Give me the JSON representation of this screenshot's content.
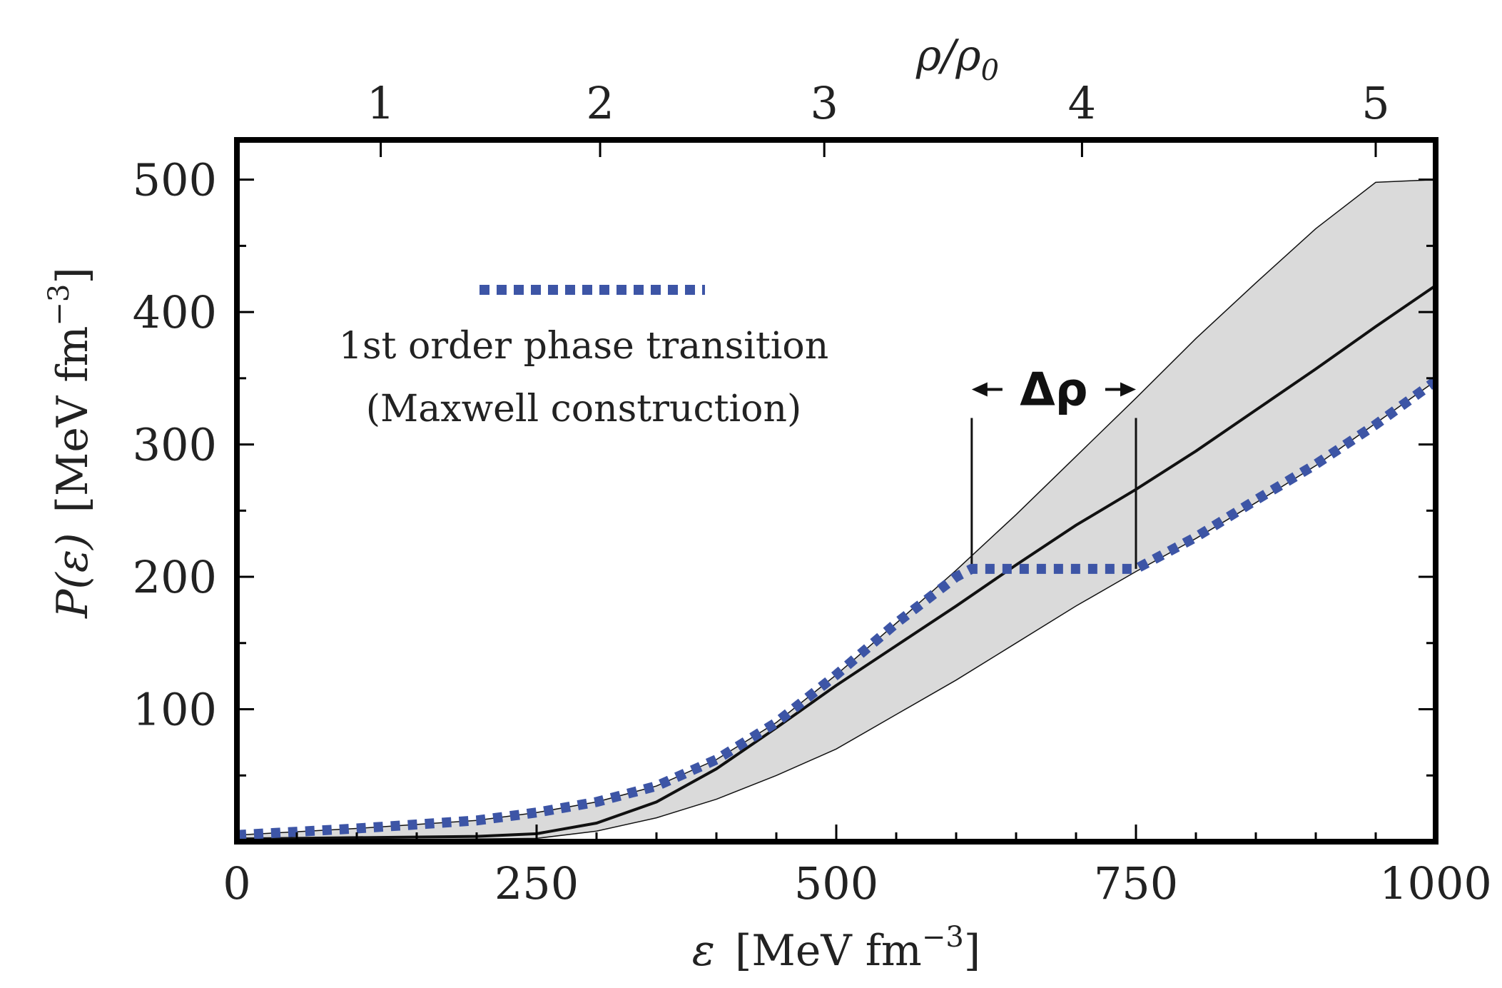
{
  "chart_data": {
    "type": "line",
    "x_axis": {
      "label_symbol": "ε",
      "label_units": "[MeV fm",
      "label_exponent": "−3",
      "label_close": "]",
      "range": [
        0,
        1000
      ],
      "ticks": [
        0,
        250,
        500,
        750,
        1000
      ],
      "tick_labels": [
        "0",
        "250",
        "500",
        "750",
        "1000"
      ],
      "minor_step": 50
    },
    "y_axis": {
      "label_symbol": "P(ε)",
      "label_units": "[MeV fm",
      "label_exponent": "−3",
      "label_close": "]",
      "range": [
        0,
        530
      ],
      "ticks": [
        100,
        200,
        300,
        400,
        500
      ],
      "tick_labels": [
        "100",
        "200",
        "300",
        "400",
        "500"
      ],
      "minor_step": 50
    },
    "top_axis": {
      "label": "ρ/ρ0",
      "label_main": "ρ/ρ",
      "label_sub": "0",
      "ticks": [
        {
          "label": "1",
          "epsilon": 120
        },
        {
          "label": "2",
          "epsilon": 303
        },
        {
          "label": "3",
          "epsilon": 490
        },
        {
          "label": "4",
          "epsilon": 705
        },
        {
          "label": "5",
          "epsilon": 950
        }
      ]
    },
    "series": [
      {
        "name": "upper-band-bound",
        "x": [
          0,
          100,
          200,
          250,
          300,
          350,
          400,
          450,
          500,
          550,
          600,
          650,
          700,
          750,
          800,
          850,
          900,
          950,
          1000
        ],
        "y": [
          5,
          10,
          16,
          22,
          30,
          42,
          62,
          90,
          126,
          165,
          205,
          247,
          291,
          335,
          380,
          422,
          463,
          498,
          500
        ]
      },
      {
        "name": "lower-band-bound",
        "x": [
          0,
          100,
          200,
          250,
          300,
          350,
          400,
          450,
          500,
          550,
          600,
          650,
          700,
          750,
          800,
          850,
          900,
          950,
          1000
        ],
        "y": [
          1,
          1.5,
          2,
          2.5,
          8,
          18,
          32,
          50,
          70,
          96,
          122,
          150,
          178,
          204,
          229,
          256,
          284,
          316,
          348
        ]
      },
      {
        "name": "central-eos",
        "x": [
          0,
          100,
          200,
          250,
          300,
          350,
          400,
          450,
          500,
          550,
          600,
          650,
          700,
          750,
          800,
          850,
          900,
          950,
          1000
        ],
        "y": [
          2,
          3,
          4,
          6,
          14,
          30,
          55,
          86,
          118,
          148,
          178,
          209,
          239,
          266,
          295,
          326,
          357,
          389,
          420
        ]
      },
      {
        "name": "1st order phase transition",
        "x": [
          0,
          100,
          200,
          250,
          300,
          350,
          400,
          450,
          500,
          550,
          600,
          613,
          750,
          800,
          850,
          900,
          950,
          1000
        ],
        "y": [
          5,
          10,
          16,
          22,
          30,
          42,
          62,
          90,
          126,
          165,
          200,
          206,
          206,
          230,
          258,
          285,
          315,
          348
        ]
      }
    ],
    "band_color": "#dadada",
    "series_color_dotted": "#3d55a6",
    "line_color": "#111111",
    "transition": {
      "epsilon_start": 613,
      "epsilon_end": 750,
      "pressure": 206,
      "marker_top_pressure": 320,
      "label": "Δρ"
    },
    "legend": {
      "line1": "1st order phase transition",
      "line2": "(Maxwell construction)",
      "placement": "upper-left"
    }
  }
}
